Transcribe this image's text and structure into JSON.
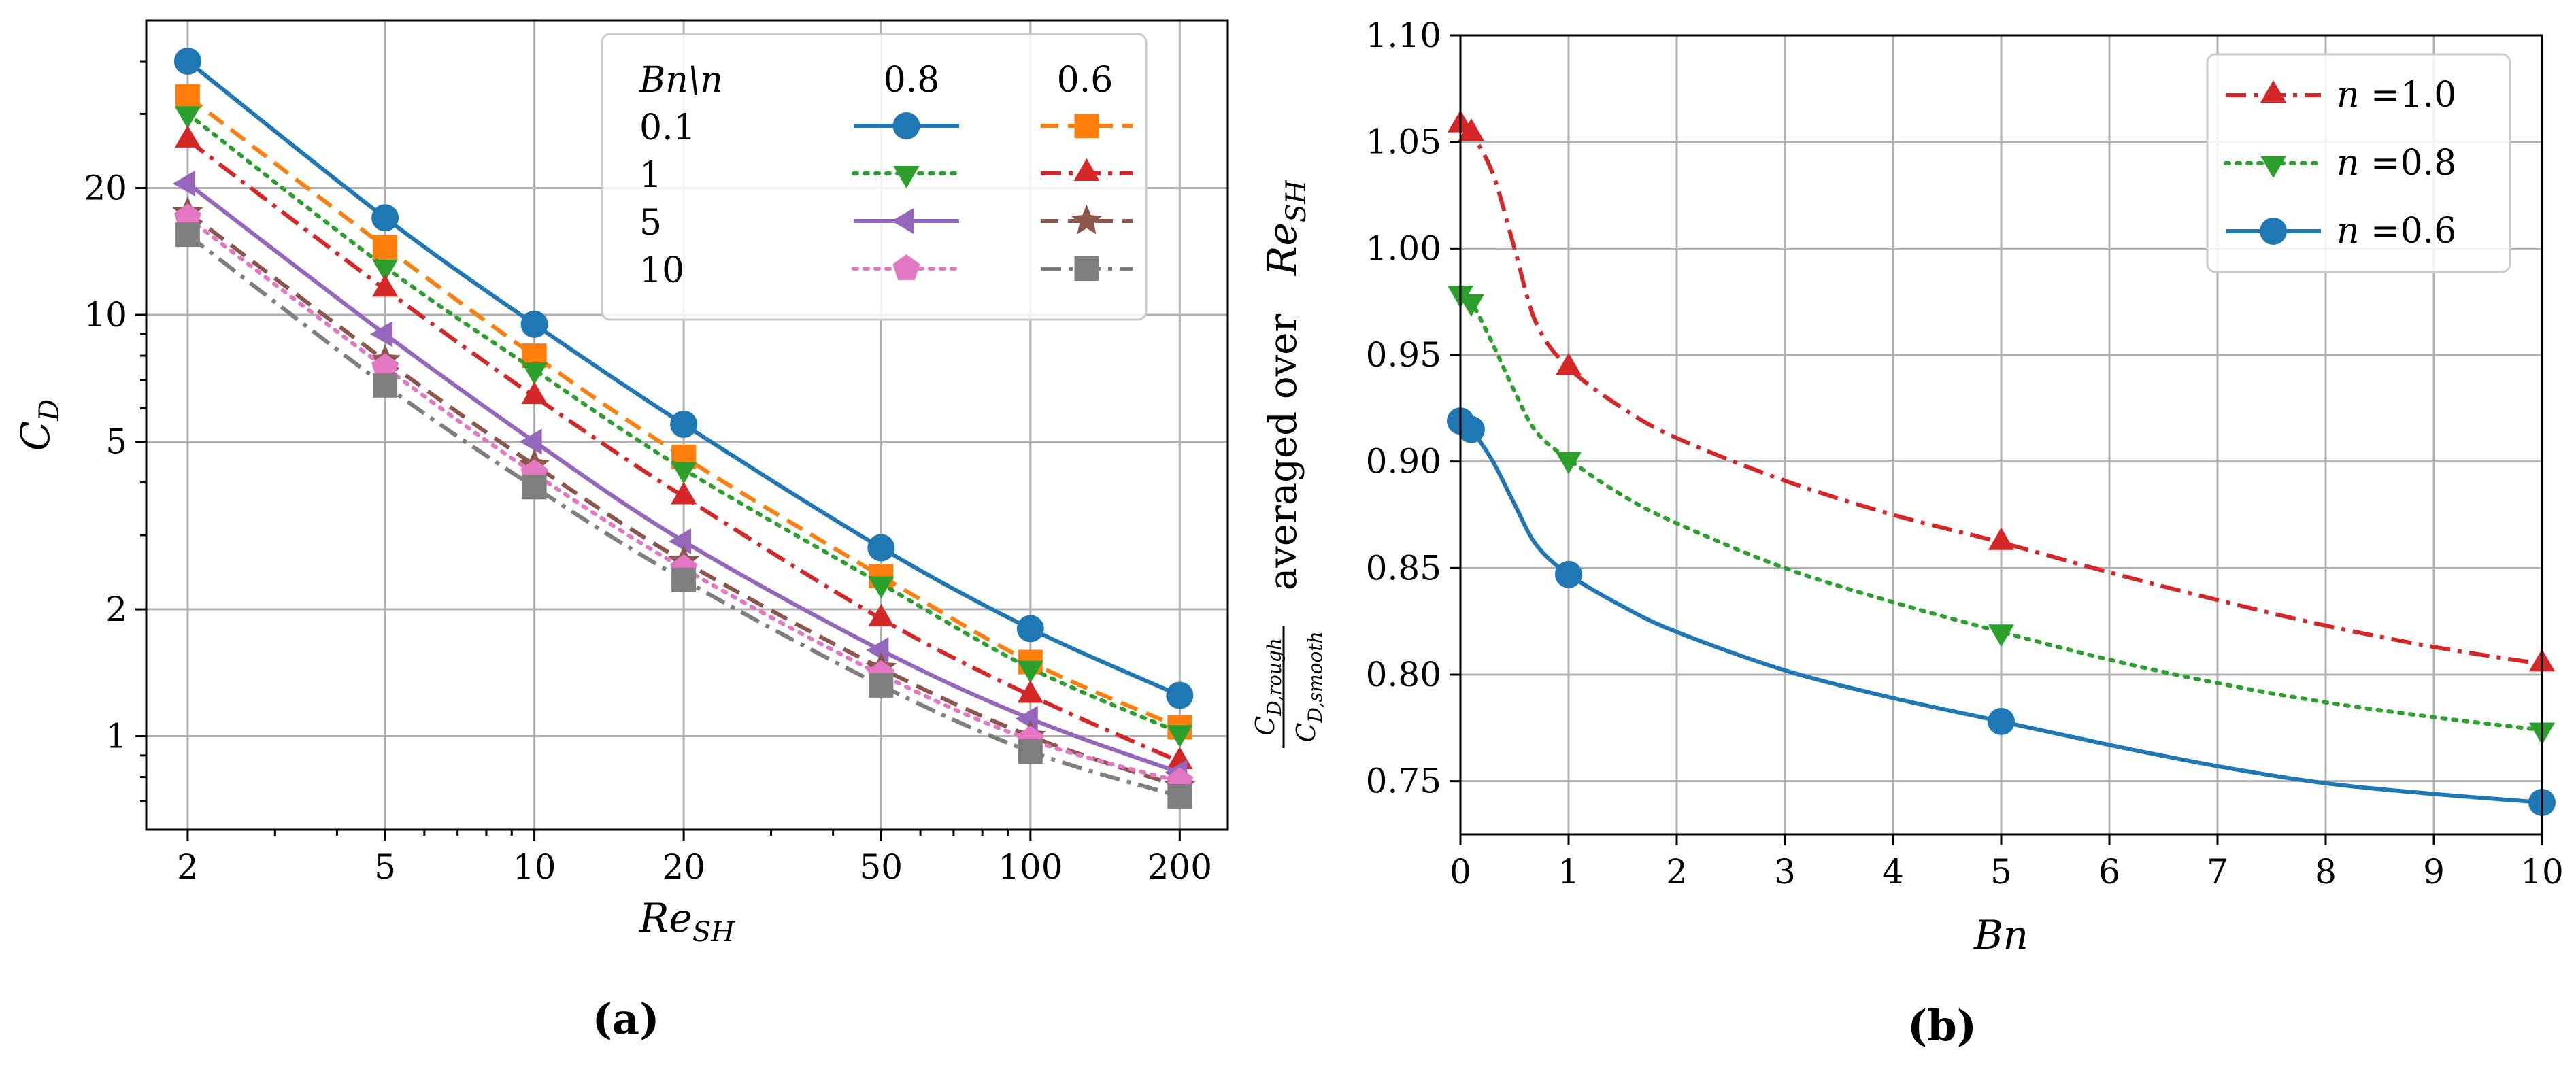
{
  "chart_data": [
    {
      "panel": "(a)",
      "type": "line",
      "xscale": "log",
      "yscale": "log",
      "xlabel": "Re",
      "xlabel_sub": "SH",
      "ylabel": "C",
      "ylabel_sub": "D",
      "xlim": [
        1.65,
        250
      ],
      "ylim": [
        0.6,
        50
      ],
      "xticks": [
        2,
        5,
        10,
        20,
        50,
        100,
        200
      ],
      "xtick_labels": [
        "2",
        "5",
        "10",
        "20",
        "50",
        "100",
        "200"
      ],
      "yticks": [
        1,
        2,
        5,
        10,
        20
      ],
      "ytick_labels": [
        "1",
        "2",
        "5",
        "10",
        "20"
      ],
      "x": [
        2,
        5,
        10,
        20,
        50,
        100,
        200
      ],
      "grid": true,
      "legend": {
        "header_label": "Bn\\n",
        "col_headers": [
          "0.8",
          "0.6"
        ],
        "row_labels": [
          "0.1",
          "1",
          "5",
          "10"
        ],
        "placement": "top-right"
      },
      "series": [
        {
          "Bn": "0.1",
          "n": "0.8",
          "color": "#1f77b4",
          "dash": "solid",
          "marker": "circle",
          "values": [
            40,
            17.0,
            9.5,
            5.5,
            2.8,
            1.8,
            1.25
          ]
        },
        {
          "Bn": "0.1",
          "n": "0.6",
          "color": "#ff7f0e",
          "dash": "dashed",
          "marker": "square",
          "values": [
            33,
            14.5,
            8.0,
            4.6,
            2.4,
            1.5,
            1.05
          ]
        },
        {
          "Bn": "1",
          "n": "0.8",
          "color": "#2ca02c",
          "dash": "dotted",
          "marker": "triangle-down",
          "values": [
            30,
            13.0,
            7.4,
            4.3,
            2.3,
            1.45,
            1.02
          ]
        },
        {
          "Bn": "1",
          "n": "0.6",
          "color": "#d62728",
          "dash": "dashdot",
          "marker": "triangle-up",
          "values": [
            26,
            11.5,
            6.4,
            3.7,
            1.9,
            1.25,
            0.87
          ]
        },
        {
          "Bn": "5",
          "n": "0.8",
          "color": "#9467bd",
          "dash": "solid",
          "marker": "triangle-left",
          "values": [
            20.5,
            9.0,
            5.0,
            2.9,
            1.6,
            1.1,
            0.82
          ]
        },
        {
          "Bn": "5",
          "n": "0.6",
          "color": "#8c564b",
          "dash": "dashed",
          "marker": "star",
          "values": [
            17.5,
            7.8,
            4.4,
            2.6,
            1.45,
            1.0,
            0.76
          ]
        },
        {
          "Bn": "10",
          "n": "0.8",
          "color": "#e377c2",
          "dash": "dotted",
          "marker": "pentagon",
          "values": [
            17.0,
            7.5,
            4.2,
            2.5,
            1.4,
            0.98,
            0.78
          ]
        },
        {
          "Bn": "10",
          "n": "0.6",
          "color": "#7f7f7f",
          "dash": "dashdot",
          "marker": "square",
          "values": [
            15.5,
            6.8,
            3.9,
            2.35,
            1.32,
            0.92,
            0.72
          ]
        }
      ]
    },
    {
      "panel": "(b)",
      "type": "line",
      "xlabel": "Bn",
      "ylabel_frac_num": "C",
      "ylabel_frac_num_sub": "D,rough",
      "ylabel_frac_den": "C",
      "ylabel_frac_den_sub": "D,smooth",
      "ylabel_mid": "averaged over",
      "ylabel_re": "Re",
      "ylabel_re_sub": "SH",
      "xlim": [
        0,
        10
      ],
      "ylim": [
        0.725,
        1.1
      ],
      "xticks": [
        0,
        1,
        2,
        3,
        4,
        5,
        6,
        7,
        8,
        9,
        10
      ],
      "xtick_labels": [
        "0",
        "1",
        "2",
        "3",
        "4",
        "5",
        "6",
        "7",
        "8",
        "9",
        "10"
      ],
      "yticks": [
        0.75,
        0.8,
        0.85,
        0.9,
        0.95,
        1.0,
        1.05,
        1.1
      ],
      "ytick_labels": [
        "0.75",
        "0.80",
        "0.85",
        "0.90",
        "0.95",
        "1.00",
        "1.05",
        "1.10"
      ],
      "grid": true,
      "legend": {
        "placement": "top-right",
        "prefix": "n ="
      },
      "series": [
        {
          "name": "1.0",
          "color": "#d62728",
          "dash": "dashdot",
          "marker": "triangle-up",
          "marker_x": [
            0,
            0.1,
            1,
            5,
            10
          ],
          "marker_y": [
            1.058,
            1.054,
            0.944,
            0.862,
            0.805
          ],
          "x": [
            0,
            0.1,
            0.3,
            0.5,
            0.7,
            1,
            1.5,
            2,
            3,
            4,
            5,
            6,
            7,
            8,
            9,
            10
          ],
          "y": [
            1.058,
            1.054,
            1.035,
            1.0,
            0.965,
            0.944,
            0.925,
            0.911,
            0.891,
            0.875,
            0.862,
            0.848,
            0.835,
            0.823,
            0.813,
            0.805
          ]
        },
        {
          "name": "0.8",
          "color": "#2ca02c",
          "dash": "dotted",
          "marker": "triangle-down",
          "marker_x": [
            0,
            0.1,
            1,
            5,
            10
          ],
          "marker_y": [
            0.979,
            0.975,
            0.901,
            0.82,
            0.774
          ],
          "x": [
            0,
            0.1,
            0.3,
            0.5,
            0.7,
            1,
            1.5,
            2,
            3,
            4,
            5,
            6,
            7,
            8,
            9,
            10
          ],
          "y": [
            0.979,
            0.975,
            0.955,
            0.933,
            0.914,
            0.901,
            0.884,
            0.871,
            0.85,
            0.834,
            0.82,
            0.807,
            0.796,
            0.787,
            0.78,
            0.774
          ]
        },
        {
          "name": "0.6",
          "color": "#1f77b4",
          "dash": "solid",
          "marker": "circle",
          "marker_x": [
            0,
            0.1,
            1,
            5,
            10
          ],
          "marker_y": [
            0.919,
            0.915,
            0.847,
            0.778,
            0.74
          ],
          "x": [
            0,
            0.1,
            0.3,
            0.5,
            0.7,
            1,
            1.5,
            2,
            3,
            4,
            5,
            6,
            7,
            8,
            9,
            10
          ],
          "y": [
            0.919,
            0.915,
            0.9,
            0.88,
            0.861,
            0.847,
            0.832,
            0.82,
            0.802,
            0.789,
            0.778,
            0.767,
            0.757,
            0.749,
            0.744,
            0.74
          ]
        }
      ]
    }
  ]
}
